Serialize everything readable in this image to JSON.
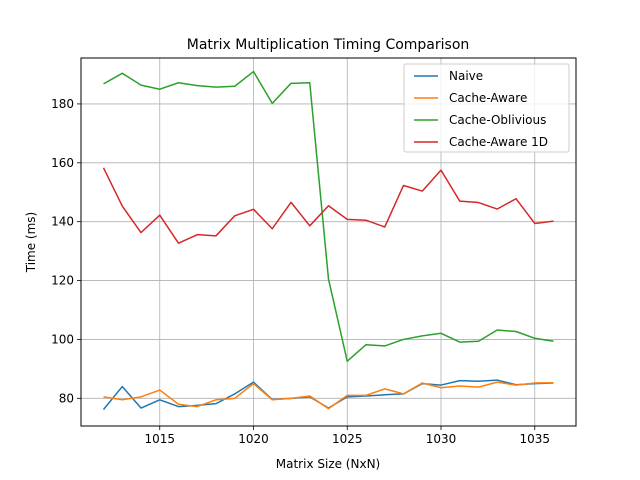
{
  "chart_data": {
    "type": "line",
    "title": "Matrix Multiplication Timing Comparison",
    "xlabel": "Matrix Size (NxN)",
    "ylabel": "Time (ms)",
    "xlim": [
      1010.8,
      1037.2
    ],
    "ylim": [
      70.6,
      195.6
    ],
    "xticks": [
      1015,
      1020,
      1025,
      1030,
      1035
    ],
    "yticks": [
      80,
      100,
      120,
      140,
      160,
      180
    ],
    "grid": true,
    "legend_position": "top-right",
    "x": [
      1012,
      1013,
      1014,
      1015,
      1016,
      1017,
      1018,
      1019,
      1020,
      1021,
      1022,
      1023,
      1024,
      1025,
      1026,
      1027,
      1028,
      1029,
      1030,
      1031,
      1032,
      1033,
      1034,
      1035,
      1036
    ],
    "series": [
      {
        "name": "Naive",
        "color": "#1f77b4",
        "values": [
          76.2,
          84.0,
          76.7,
          79.5,
          77.2,
          77.6,
          78.2,
          81.5,
          85.5,
          79.6,
          80.0,
          80.5,
          76.7,
          80.5,
          80.8,
          81.2,
          81.5,
          85.0,
          84.5,
          86.0,
          85.8,
          86.2,
          84.6,
          85.0,
          85.2
        ]
      },
      {
        "name": "Cache-Aware",
        "color": "#ff7f0e",
        "values": [
          80.5,
          79.5,
          80.5,
          82.8,
          78.0,
          77.2,
          79.5,
          80.0,
          85.0,
          79.5,
          80.0,
          80.8,
          76.5,
          81.0,
          81.0,
          83.2,
          81.5,
          85.2,
          83.6,
          84.2,
          83.8,
          85.5,
          84.5,
          85.2,
          85.3
        ]
      },
      {
        "name": "Cache-Oblivious",
        "color": "#2ca02c",
        "values": [
          186.8,
          190.4,
          186.4,
          185.0,
          187.2,
          186.2,
          185.7,
          186.0,
          191.0,
          180.2,
          187.0,
          187.2,
          120.5,
          92.6,
          98.2,
          97.8,
          100.0,
          101.2,
          102.1,
          99.1,
          99.4,
          103.2,
          102.7,
          100.4,
          99.4
        ]
      },
      {
        "name": "Cache-Aware 1D",
        "color": "#d62728",
        "values": [
          158.3,
          145.3,
          136.3,
          142.2,
          132.7,
          135.6,
          135.2,
          142.0,
          144.2,
          137.6,
          146.6,
          138.6,
          145.4,
          140.8,
          140.5,
          138.2,
          152.3,
          150.4,
          157.5,
          147.0,
          146.5,
          144.3,
          147.8,
          139.4,
          140.2
        ]
      }
    ]
  }
}
